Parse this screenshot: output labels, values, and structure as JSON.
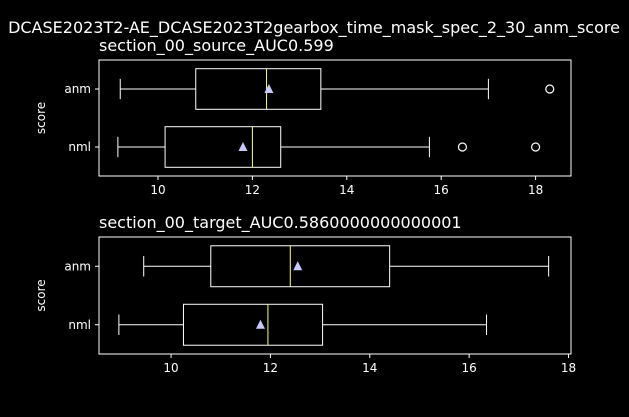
{
  "figure_title": "DCASE2023T2-AE_DCASE2023T2gearbox_time_mask_spec_2_30_anm_score",
  "colors": {
    "background": "#000000",
    "box": "#ffffff",
    "median": "#ffff80",
    "mean_marker": "#c8c8ff"
  },
  "chart_data": [
    {
      "type": "boxplot",
      "title": "section_00_source_AUC0.599",
      "ylabel": "score",
      "xlim": [
        8.75,
        18.75
      ],
      "xticks": [
        10,
        12,
        14,
        16,
        18
      ],
      "categories": [
        "anm",
        "nml"
      ],
      "series": [
        {
          "category": "anm",
          "whisker_low": 9.2,
          "q1": 10.8,
          "median": 12.3,
          "q3": 13.45,
          "whisker_high": 17.0,
          "mean": 12.35,
          "outliers": [
            18.3
          ]
        },
        {
          "category": "nml",
          "whisker_low": 9.15,
          "q1": 10.15,
          "median": 12.0,
          "q3": 12.6,
          "whisker_high": 15.75,
          "mean": 11.8,
          "outliers": [
            16.45,
            18.0
          ]
        }
      ]
    },
    {
      "type": "boxplot",
      "title": "section_00_target_AUC0.5860000000000001",
      "ylabel": "score",
      "xlim": [
        8.55,
        18.05
      ],
      "xticks": [
        10,
        12,
        14,
        16,
        18
      ],
      "categories": [
        "anm",
        "nml"
      ],
      "series": [
        {
          "category": "anm",
          "whisker_low": 9.45,
          "q1": 10.8,
          "median": 12.4,
          "q3": 14.4,
          "whisker_high": 17.6,
          "mean": 12.55,
          "outliers": []
        },
        {
          "category": "nml",
          "whisker_low": 8.95,
          "q1": 10.25,
          "median": 11.95,
          "q3": 13.05,
          "whisker_high": 16.35,
          "mean": 11.8,
          "outliers": []
        }
      ]
    }
  ]
}
